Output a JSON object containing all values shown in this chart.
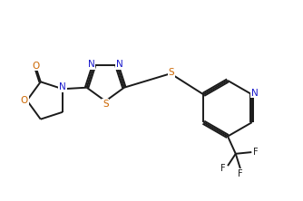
{
  "bg_color": "#ffffff",
  "bond_color": "#1a1a1a",
  "N_color": "#1a1acc",
  "O_color": "#cc6600",
  "S_color": "#cc6600",
  "F_color": "#1a1a1a",
  "lw": 1.4,
  "dbo": 0.055,
  "xlim": [
    0.0,
    9.5
  ],
  "ylim": [
    0.5,
    6.5
  ]
}
